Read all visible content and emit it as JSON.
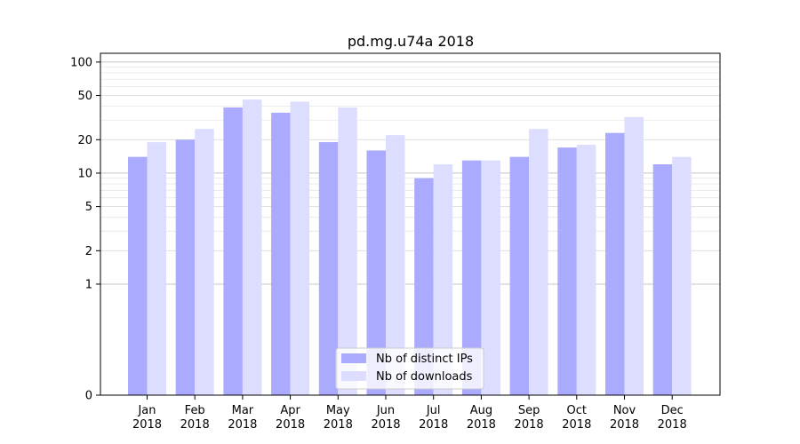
{
  "chart_data": {
    "type": "bar",
    "title": "pd.mg.u74a 2018",
    "xlabel": "",
    "ylabel": "",
    "y_scale": "symlog",
    "ylim": [
      0,
      120
    ],
    "y_ticks": [
      0,
      1,
      2,
      5,
      10,
      20,
      50,
      100
    ],
    "categories": [
      [
        "Jan",
        "2018"
      ],
      [
        "Feb",
        "2018"
      ],
      [
        "Mar",
        "2018"
      ],
      [
        "Apr",
        "2018"
      ],
      [
        "May",
        "2018"
      ],
      [
        "Jun",
        "2018"
      ],
      [
        "Jul",
        "2018"
      ],
      [
        "Aug",
        "2018"
      ],
      [
        "Sep",
        "2018"
      ],
      [
        "Oct",
        "2018"
      ],
      [
        "Nov",
        "2018"
      ],
      [
        "Dec",
        "2018"
      ]
    ],
    "series": [
      {
        "name": "Nb of distinct IPs",
        "color": "#aaaaff",
        "values": [
          14,
          20,
          39,
          35,
          19,
          16,
          9,
          13,
          14,
          17,
          23,
          12
        ]
      },
      {
        "name": "Nb of downloads",
        "color": "#ddddff",
        "values": [
          19,
          25,
          46,
          44,
          39,
          22,
          12,
          13,
          25,
          18,
          32,
          14
        ]
      }
    ],
    "grid": true,
    "legend_position": "bottom-center"
  }
}
